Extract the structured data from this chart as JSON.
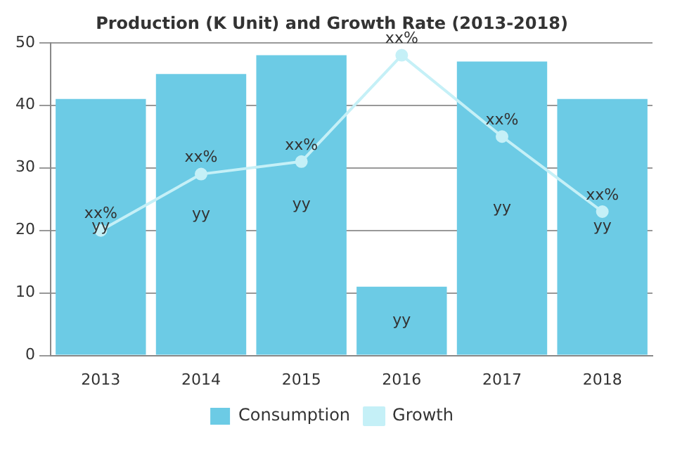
{
  "chart_data": {
    "type": "bar",
    "title": "Production (K Unit) and Growth Rate (2013-2018)",
    "categories": [
      "2013",
      "2014",
      "2015",
      "2016",
      "2017",
      "2018"
    ],
    "series": [
      {
        "name": "Consumption",
        "color": "#6ccbe5",
        "values": [
          41,
          45,
          48,
          11,
          47,
          41
        ],
        "value_labels": [
          "yy",
          "yy",
          "yy",
          "yy",
          "yy",
          "yy"
        ]
      },
      {
        "name": "Growth",
        "type": "line",
        "color": "#c5f0f7",
        "values": [
          20,
          29,
          31,
          48,
          35,
          23
        ],
        "value_labels": [
          "xx%",
          "xx%",
          "xx%",
          "xx%",
          "xx%",
          "xx%"
        ]
      }
    ],
    "ylim": [
      0,
      50
    ],
    "yticks": [
      0,
      10,
      20,
      30,
      40,
      50
    ],
    "grid": "y",
    "legend": "bottom",
    "marker": "circle"
  }
}
